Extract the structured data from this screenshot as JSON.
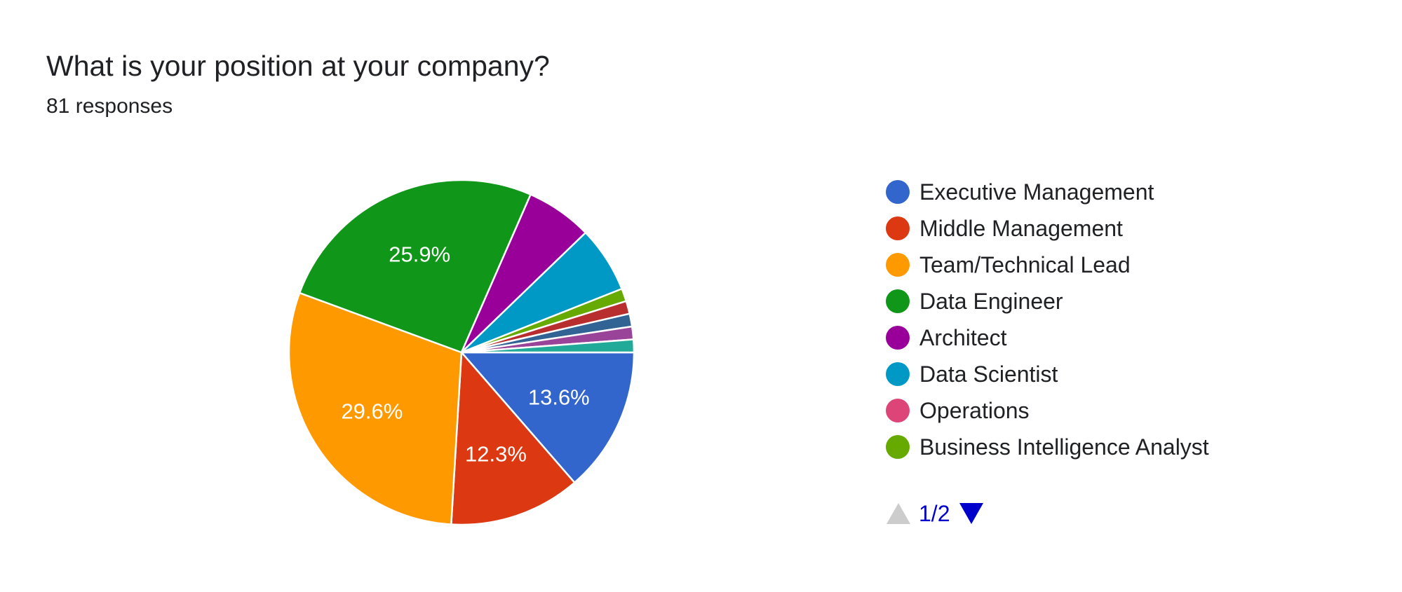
{
  "header": {
    "title": "What is your position at your company?",
    "responses": "81 responses"
  },
  "chart_data": {
    "type": "pie",
    "title": "What is your position at your company?",
    "subtitle": "81 responses",
    "legend_position": "right",
    "slices": [
      {
        "name": "Executive Management",
        "value": 13.6,
        "label": "13.6%",
        "color": "#3366cc"
      },
      {
        "name": "Middle Management",
        "value": 12.3,
        "label": "12.3%",
        "color": "#dc3912"
      },
      {
        "name": "Team/Technical Lead",
        "value": 29.6,
        "label": "29.6%",
        "color": "#ff9900"
      },
      {
        "name": "Data Engineer",
        "value": 25.9,
        "label": "25.9%",
        "color": "#109618"
      },
      {
        "name": "Architect",
        "value": 6.2,
        "label": "",
        "color": "#990099"
      },
      {
        "name": "Data Scientist",
        "value": 6.2,
        "label": "",
        "color": "#0099c6"
      },
      {
        "name": "Operations",
        "value": 0.0,
        "label": "",
        "color": "#dd4477"
      },
      {
        "name": "Business Intelligence Analyst",
        "value": 1.2,
        "label": "",
        "color": "#66aa00"
      },
      {
        "name": "",
        "value": 1.2,
        "label": "",
        "color": "#b82e2e"
      },
      {
        "name": "",
        "value": 1.2,
        "label": "",
        "color": "#316395"
      },
      {
        "name": "",
        "value": 1.2,
        "label": "",
        "color": "#994499"
      },
      {
        "name": "",
        "value": 1.2,
        "label": "",
        "color": "#22aa99"
      }
    ]
  },
  "legend": {
    "items": [
      {
        "label": "Executive Management",
        "color": "#3366cc"
      },
      {
        "label": "Middle Management",
        "color": "#dc3912"
      },
      {
        "label": "Team/Technical Lead",
        "color": "#ff9900"
      },
      {
        "label": "Data Engineer",
        "color": "#109618"
      },
      {
        "label": "Architect",
        "color": "#990099"
      },
      {
        "label": "Data Scientist",
        "color": "#0099c6"
      },
      {
        "label": "Operations",
        "color": "#dd4477"
      },
      {
        "label": "Business Intelligence Analyst",
        "color": "#66aa00"
      }
    ],
    "pager": {
      "text": "1/2",
      "prev_icon": "triangle-up-icon",
      "next_icon": "triangle-down-icon",
      "prev_color": "#cccccc",
      "next_color": "#0000cc"
    }
  }
}
